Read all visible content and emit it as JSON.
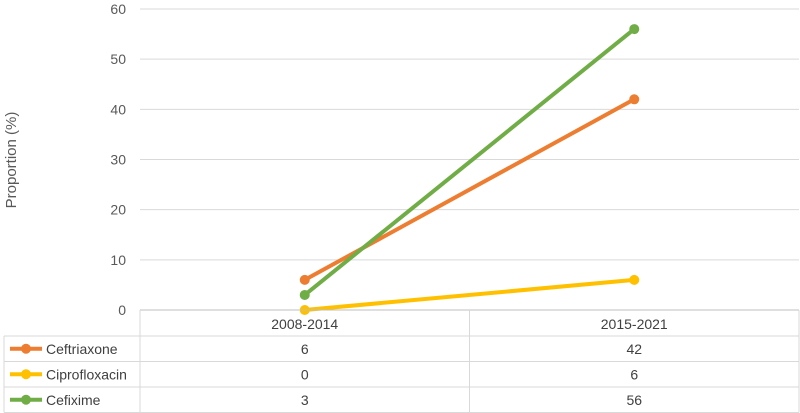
{
  "chart_data": {
    "type": "line",
    "ylabel": "Proportion (%)",
    "ylim": [
      0,
      60
    ],
    "yticks": [
      0,
      10,
      20,
      30,
      40,
      50,
      60
    ],
    "grid": true,
    "legend": "data-table-bottom",
    "categories": [
      "2008-2014",
      "2015-2021"
    ],
    "series": [
      {
        "name": "Ceftriaxone",
        "values": [
          6,
          42
        ],
        "color": "#ED7D31"
      },
      {
        "name": "Ciprofloxacin",
        "values": [
          0,
          6
        ],
        "color": "#FFC000"
      },
      {
        "name": "Cefixime",
        "values": [
          3,
          56
        ],
        "color": "#70AD47"
      }
    ]
  }
}
